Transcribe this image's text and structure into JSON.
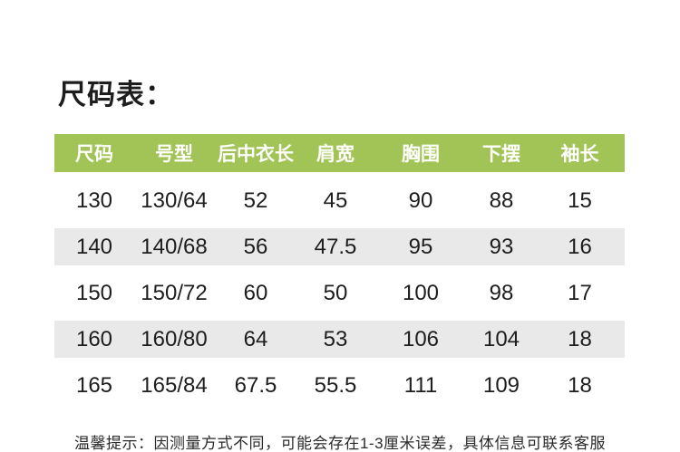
{
  "page": {
    "title": "尺码表："
  },
  "table": {
    "columns": [
      "尺码",
      "号型",
      "后中衣长",
      "肩宽",
      "胸围",
      "下摆",
      "袖长"
    ],
    "rows": [
      {
        "cells": [
          "130",
          "130/64",
          "52",
          "45",
          "90",
          "88",
          "15"
        ]
      },
      {
        "cells": [
          "140",
          "140/68",
          "56",
          "47.5",
          "95",
          "93",
          "16"
        ]
      },
      {
        "cells": [
          "150",
          "150/72",
          "60",
          "50",
          "100",
          "98",
          "17"
        ]
      },
      {
        "cells": [
          "160",
          "160/80",
          "64",
          "53",
          "106",
          "104",
          "18"
        ]
      },
      {
        "cells": [
          "165",
          "165/84",
          "67.5",
          "55.5",
          "111",
          "109",
          "18"
        ]
      }
    ]
  },
  "footer": {
    "note": "温馨提示：因测量方式不同，可能会存在1-3厘米误差，具体信息可联系客服"
  },
  "colors": {
    "header_bg": "#a2c355",
    "header_text": "#ffffff",
    "stripe_bg": "#e9e9e9",
    "text": "#1d1d1d",
    "footer_text": "#2a2a2a"
  }
}
